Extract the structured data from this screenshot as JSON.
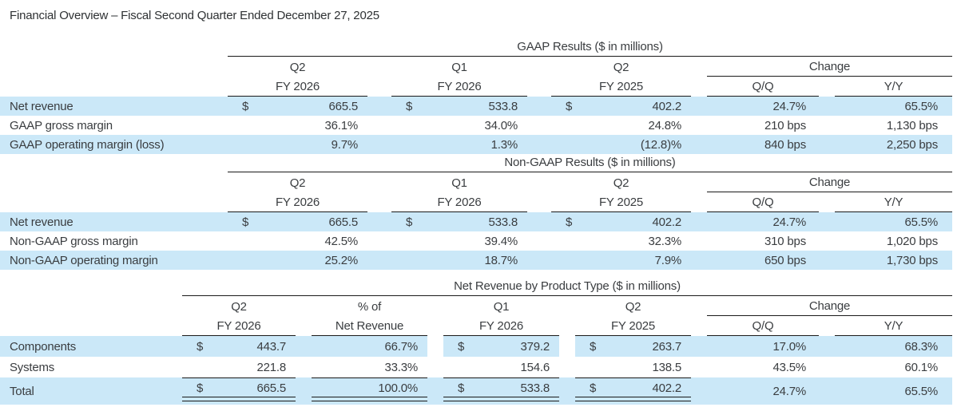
{
  "page_title": "Financial Overview – Fiscal Second Quarter Ended December 27, 2025",
  "colors": {
    "row_highlight": "#cbe8f8",
    "text": "#3a3d40",
    "rule": "#1a1a1a"
  },
  "sections": [
    {
      "title": "GAAP Results ($ in millions)",
      "columns": [
        {
          "q": "Q2",
          "fy": "FY 2026"
        },
        {
          "q": "Q1",
          "fy": "FY 2026"
        },
        {
          "q": "Q2",
          "fy": "FY 2025"
        }
      ],
      "change": {
        "label": "Change",
        "qq": "Q/Q",
        "yy": "Y/Y"
      },
      "rows": [
        {
          "label": "Net revenue",
          "cells": [
            {
              "cur": "$",
              "num": "665.5"
            },
            {
              "cur": "$",
              "num": "533.8"
            },
            {
              "cur": "$",
              "num": "402.2"
            }
          ],
          "qq": "24.7%",
          "yy": "65.5%"
        },
        {
          "label": "GAAP gross margin",
          "cells": [
            {
              "num": "36.1%"
            },
            {
              "num": "34.0%"
            },
            {
              "num": "24.8%"
            }
          ],
          "qq": "210 bps",
          "yy": "1,130 bps"
        },
        {
          "label": "GAAP operating margin (loss)",
          "cells": [
            {
              "num": "9.7%"
            },
            {
              "num": "1.3%"
            },
            {
              "num": "(12.8)%"
            }
          ],
          "qq": "840 bps",
          "yy": "2,250 bps"
        }
      ]
    },
    {
      "title": "Non-GAAP Results ($ in millions)",
      "columns": [
        {
          "q": "Q2",
          "fy": "FY 2026"
        },
        {
          "q": "Q1",
          "fy": "FY 2026"
        },
        {
          "q": "Q2",
          "fy": "FY 2025"
        }
      ],
      "change": {
        "label": "Change",
        "qq": "Q/Q",
        "yy": "Y/Y"
      },
      "rows": [
        {
          "label": "Net revenue",
          "cells": [
            {
              "cur": "$",
              "num": "665.5"
            },
            {
              "cur": "$",
              "num": "533.8"
            },
            {
              "cur": "$",
              "num": "402.2"
            }
          ],
          "qq": "24.7%",
          "yy": "65.5%"
        },
        {
          "label": "Non-GAAP gross margin",
          "cells": [
            {
              "num": "42.5%"
            },
            {
              "num": "39.4%"
            },
            {
              "num": "32.3%"
            }
          ],
          "qq": "310 bps",
          "yy": "1,020 bps"
        },
        {
          "label": "Non-GAAP operating margin",
          "cells": [
            {
              "num": "25.2%"
            },
            {
              "num": "18.7%"
            },
            {
              "num": "7.9%"
            }
          ],
          "qq": "650 bps",
          "yy": "1,730 bps"
        }
      ]
    },
    {
      "title": "Net Revenue by Product Type ($ in millions)",
      "columns": [
        {
          "q": "Q2",
          "fy": "FY 2026"
        },
        {
          "q": "% of",
          "fy": "Net Revenue"
        },
        {
          "q": "Q1",
          "fy": "FY 2026"
        },
        {
          "q": "Q2",
          "fy": "FY 2025"
        }
      ],
      "change": {
        "label": "Change",
        "qq": "Q/Q",
        "yy": "Y/Y"
      },
      "rows": [
        {
          "label": "Components",
          "cells": [
            {
              "cur": "$",
              "num": "443.7"
            },
            {
              "num": "66.7%"
            },
            {
              "cur": "$",
              "num": "379.2"
            },
            {
              "cur": "$",
              "num": "263.7"
            }
          ],
          "qq": "17.0%",
          "yy": "68.3%"
        },
        {
          "label": "Systems",
          "cells": [
            {
              "num": "221.8"
            },
            {
              "num": "33.3%"
            },
            {
              "num": "154.6"
            },
            {
              "num": "138.5"
            }
          ],
          "qq": "43.5%",
          "yy": "60.1%"
        },
        {
          "label": "Total",
          "cells": [
            {
              "cur": "$",
              "num": "665.5"
            },
            {
              "num": "100.0%"
            },
            {
              "cur": "$",
              "num": "533.8"
            },
            {
              "cur": "$",
              "num": "402.2"
            }
          ],
          "qq": "24.7%",
          "yy": "65.5%"
        }
      ]
    }
  ]
}
